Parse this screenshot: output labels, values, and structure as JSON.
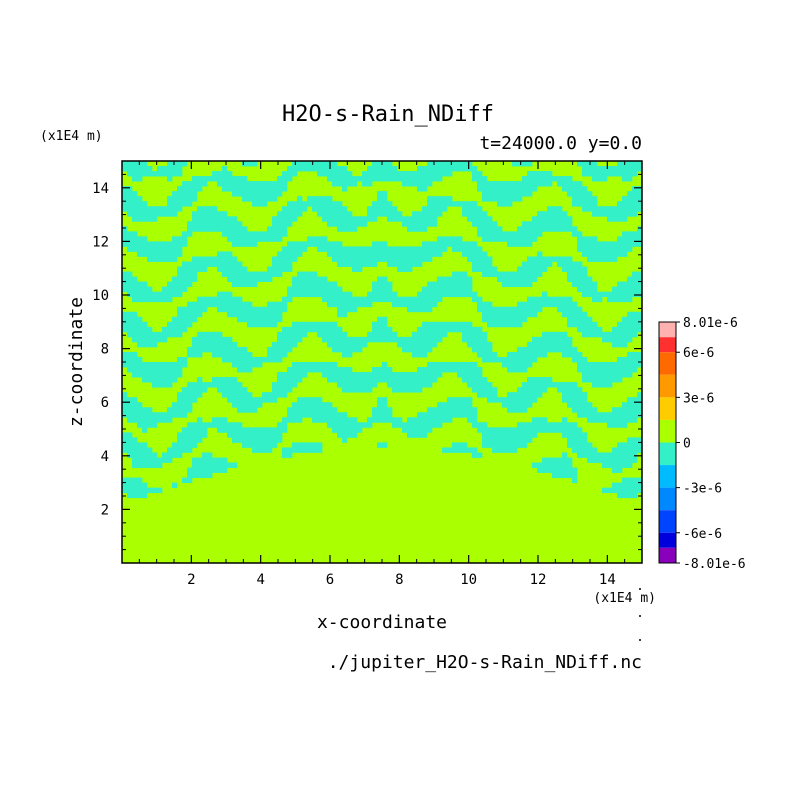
{
  "chart_data": {
    "type": "heatmap",
    "title": "H2O-s-Rain_NDiff",
    "subtitle": "t=24000.0 y=0.0",
    "xlabel": "x-coordinate",
    "ylabel": "z-coordinate",
    "x_unit": "(x1E4 m)",
    "y_unit": "(x1E4 m)",
    "source_file": "./jupiter_H2O-s-Rain_NDiff.nc",
    "xlim": [
      0,
      15
    ],
    "ylim": [
      0,
      15
    ],
    "x_ticks": [
      2,
      4,
      6,
      8,
      10,
      12,
      14
    ],
    "y_ticks": [
      2,
      4,
      6,
      8,
      10,
      12,
      14
    ],
    "colorbar": {
      "labels": [
        "8.01e-6",
        "6e-6",
        "3e-6",
        "0",
        "-3e-6",
        "-6e-6",
        "-8.01e-6"
      ],
      "label_values": [
        8.01e-06,
        6e-06,
        3e-06,
        0,
        -3e-06,
        -6e-06,
        -8.01e-06
      ],
      "bands": [
        {
          "from": 7e-06,
          "to": 8.01e-06,
          "color": "#ffb0b0"
        },
        {
          "from": 6e-06,
          "to": 7e-06,
          "color": "#ff3030"
        },
        {
          "from": 4.5e-06,
          "to": 6e-06,
          "color": "#ff6a00"
        },
        {
          "from": 3e-06,
          "to": 4.5e-06,
          "color": "#ff9900"
        },
        {
          "from": 1.5e-06,
          "to": 3e-06,
          "color": "#ffcc00"
        },
        {
          "from": 0,
          "to": 1.5e-06,
          "color": "#aaff00"
        },
        {
          "from": -1.5e-06,
          "to": 0,
          "color": "#33f0c8"
        },
        {
          "from": -3e-06,
          "to": -1.5e-06,
          "color": "#00bbff"
        },
        {
          "from": -4.5e-06,
          "to": -3e-06,
          "color": "#0088ff"
        },
        {
          "from": -6e-06,
          "to": -4.5e-06,
          "color": "#0044ff"
        },
        {
          "from": -7e-06,
          "to": -6e-06,
          "color": "#0000dd"
        },
        {
          "from": -8.01e-06,
          "to": -7e-06,
          "color": "#8800bb"
        }
      ]
    },
    "field_colors": {
      "positive": "#aaff00",
      "negative": "#33f0c8"
    }
  }
}
